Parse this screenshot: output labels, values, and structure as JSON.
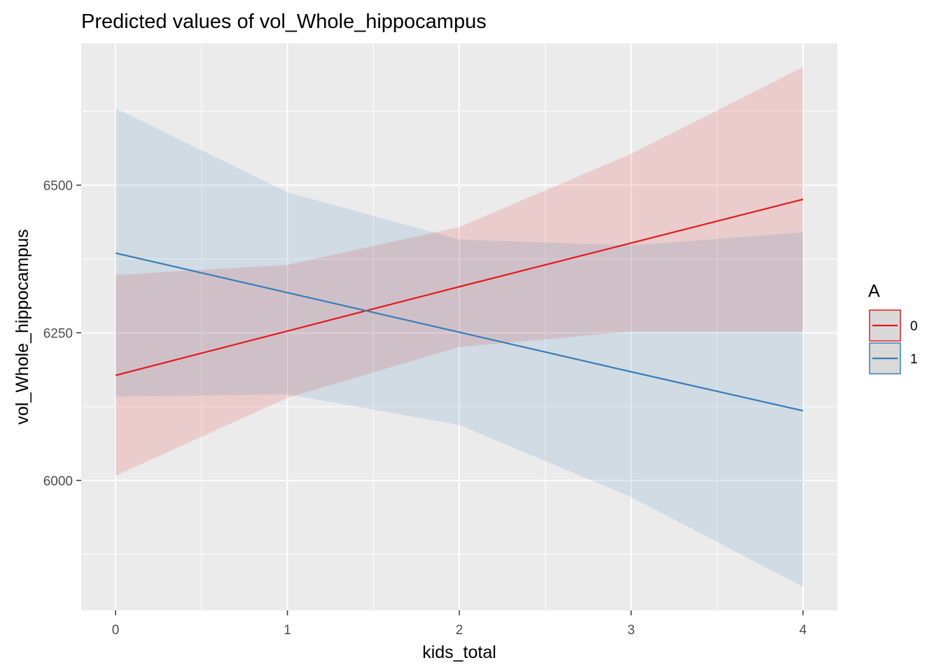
{
  "chart_data": {
    "type": "line",
    "title": "Predicted values of vol_Whole_hippocampus",
    "xlabel": "kids_total",
    "ylabel": "vol_Whole_hippocampus",
    "x": [
      0,
      1,
      2,
      3,
      4
    ],
    "xlim": [
      -0.2,
      4.2
    ],
    "ylim": [
      5780,
      6740
    ],
    "x_ticks": [
      0,
      1,
      2,
      3,
      4
    ],
    "y_ticks": [
      6000,
      6250,
      6500
    ],
    "grid": true,
    "legend": {
      "title": "A",
      "position": "right"
    },
    "series": [
      {
        "name": "0",
        "color": "#e41a1c",
        "values": [
          6178,
          6253,
          6328,
          6402,
          6476
        ],
        "lower": [
          6008,
          6140,
          6226,
          6252,
          6252
        ],
        "upper": [
          6348,
          6365,
          6429,
          6553,
          6700
        ]
      },
      {
        "name": "1",
        "color": "#377eb8",
        "values": [
          6385,
          6318,
          6251,
          6184,
          6118
        ],
        "lower": [
          6142,
          6146,
          6094,
          5972,
          5820
        ],
        "upper": [
          6630,
          6488,
          6408,
          6398,
          6420
        ]
      }
    ]
  }
}
